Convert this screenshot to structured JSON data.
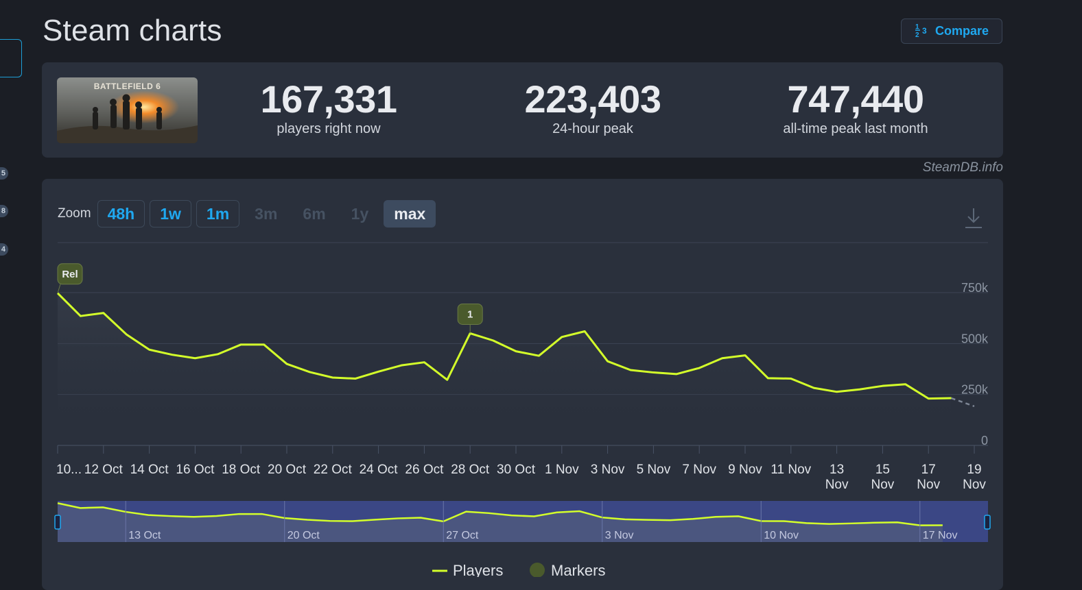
{
  "page": {
    "title": "Steam charts"
  },
  "sidebar": {
    "badges": [
      "5",
      "8",
      "4"
    ]
  },
  "toolbar": {
    "compare_label": "Compare",
    "compare_icon": "1⁄2 3"
  },
  "game": {
    "thumbnail_text": "BATTLEFIELD 6"
  },
  "stats": [
    {
      "value": "167,331",
      "label": "players right now"
    },
    {
      "value": "223,403",
      "label": "24-hour peak"
    },
    {
      "value": "747,440",
      "label": "all-time peak last month"
    }
  ],
  "attribution": "SteamDB.info",
  "zoom": {
    "label": "Zoom",
    "options": [
      {
        "label": "48h",
        "state": "enabled"
      },
      {
        "label": "1w",
        "state": "enabled"
      },
      {
        "label": "1m",
        "state": "enabled"
      },
      {
        "label": "3m",
        "state": "disabled"
      },
      {
        "label": "6m",
        "state": "disabled"
      },
      {
        "label": "1y",
        "state": "disabled"
      },
      {
        "label": "max",
        "state": "active"
      }
    ]
  },
  "legend": {
    "players": "Players",
    "markers": "Markers"
  },
  "colors": {
    "line": "#d4ff2a",
    "marker": "#4a5a2c",
    "accent": "#1fa8f0",
    "navigator_bg": "#3b4785"
  },
  "chart_data": {
    "type": "line",
    "x_unit": "days since 10 Oct",
    "ylim": [
      0,
      750000
    ],
    "y_ticks": [
      {
        "value": 0,
        "label": "0"
      },
      {
        "value": 250000,
        "label": "250k"
      },
      {
        "value": 500000,
        "label": "500k"
      },
      {
        "value": 750000,
        "label": "750k"
      }
    ],
    "x_ticks": [
      {
        "day": 0,
        "label": "10..."
      },
      {
        "day": 2,
        "label": "12 Oct"
      },
      {
        "day": 4,
        "label": "14 Oct"
      },
      {
        "day": 6,
        "label": "16 Oct"
      },
      {
        "day": 8,
        "label": "18 Oct"
      },
      {
        "day": 10,
        "label": "20 Oct"
      },
      {
        "day": 12,
        "label": "22 Oct"
      },
      {
        "day": 14,
        "label": "24 Oct"
      },
      {
        "day": 16,
        "label": "26 Oct"
      },
      {
        "day": 18,
        "label": "28 Oct"
      },
      {
        "day": 20,
        "label": "30 Oct"
      },
      {
        "day": 22,
        "label": "1 Nov"
      },
      {
        "day": 24,
        "label": "3 Nov"
      },
      {
        "day": 26,
        "label": "5 Nov"
      },
      {
        "day": 28,
        "label": "7 Nov"
      },
      {
        "day": 30,
        "label": "9 Nov"
      },
      {
        "day": 32,
        "label": "11 Nov"
      },
      {
        "day": 34,
        "label": "13\nNov"
      },
      {
        "day": 36,
        "label": "15\nNov"
      },
      {
        "day": 38,
        "label": "17\nNov"
      },
      {
        "day": 40,
        "label": "19\nNov"
      }
    ],
    "series": [
      {
        "name": "Players",
        "x": [
          0,
          1,
          2,
          3,
          4,
          5,
          6,
          7,
          8,
          9,
          10,
          11,
          12,
          13,
          14,
          15,
          16,
          17,
          18,
          19,
          20,
          21,
          22,
          23,
          24,
          25,
          26,
          27,
          28,
          29,
          30,
          31,
          32,
          33,
          34,
          35,
          36,
          37,
          38,
          39
        ],
        "values": [
          747440,
          635000,
          650000,
          545000,
          470000,
          445000,
          428000,
          448000,
          495000,
          495000,
          400000,
          360000,
          333000,
          328000,
          362000,
          393000,
          408000,
          322000,
          550000,
          515000,
          462000,
          440000,
          532000,
          560000,
          413000,
          370000,
          358000,
          350000,
          380000,
          428000,
          442000,
          330000,
          328000,
          282000,
          263000,
          275000,
          292000,
          300000,
          230000,
          232000
        ]
      }
    ],
    "projection": {
      "x": [
        39,
        40
      ],
      "values": [
        232000,
        192000
      ]
    },
    "markers": [
      {
        "x": 0,
        "value": 747440,
        "label": "Rel"
      },
      {
        "x": 18,
        "value": 550000,
        "label": "1"
      }
    ],
    "navigator": {
      "labels": [
        {
          "day": 3,
          "label": "13 Oct"
        },
        {
          "day": 10,
          "label": "20 Oct"
        },
        {
          "day": 17,
          "label": "27 Oct"
        },
        {
          "day": 24,
          "label": "3 Nov"
        },
        {
          "day": 31,
          "label": "10 Nov"
        },
        {
          "day": 38,
          "label": "17 Nov"
        }
      ]
    }
  }
}
